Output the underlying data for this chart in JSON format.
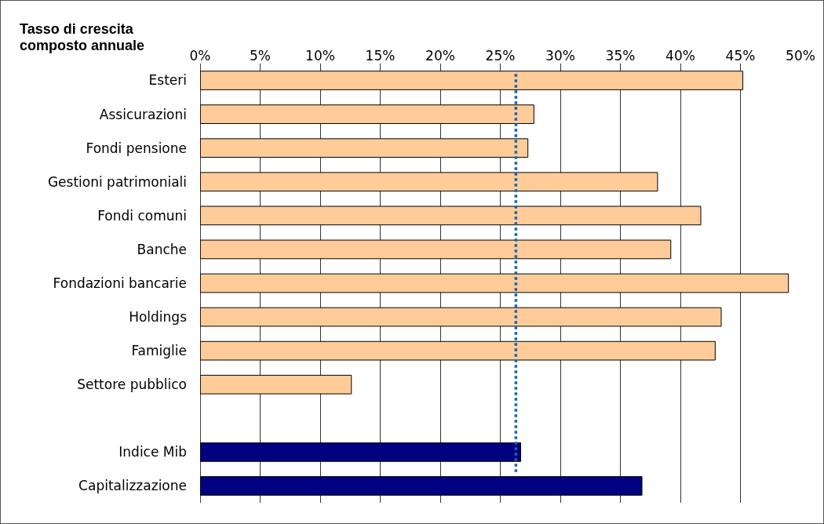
{
  "chart_data": {
    "type": "bar",
    "orientation": "horizontal",
    "title": "Tasso di crescita composto annuale",
    "categories": [
      "Esteri",
      "Assicurazioni",
      "Fondi pensione",
      "Gestioni patrimoniali",
      "Fondi comuni",
      "Banche",
      "Fondazioni bancarie",
      "Holdings",
      "Famiglie",
      "Settore pubblico",
      null,
      "Indice Mib",
      "Capitalizzazione"
    ],
    "values": [
      45.2,
      27.8,
      27.3,
      38.1,
      41.7,
      39.2,
      49.0,
      43.4,
      42.9,
      12.6,
      null,
      26.7,
      36.8
    ],
    "colors": [
      "#ffcc99",
      "#ffcc99",
      "#ffcc99",
      "#ffcc99",
      "#ffcc99",
      "#ffcc99",
      "#ffcc99",
      "#ffcc99",
      "#ffcc99",
      "#ffcc99",
      "#ffcc99",
      "#000080",
      "#000080"
    ],
    "xlim": [
      0,
      50
    ],
    "xticks": [
      {
        "value": 0,
        "label": "0%"
      },
      {
        "value": 5,
        "label": "5%"
      },
      {
        "value": 10,
        "label": "10%"
      },
      {
        "value": 15,
        "label": "15%"
      },
      {
        "value": 20,
        "label": "20%"
      },
      {
        "value": 25,
        "label": "25%"
      },
      {
        "value": 30,
        "label": "30%"
      },
      {
        "value": 35,
        "label": "35%"
      },
      {
        "value": 40,
        "label": "40%"
      },
      {
        "value": 45,
        "label": "45%"
      },
      {
        "value": 50,
        "label": "50%"
      }
    ],
    "grid": "x",
    "ref_lines": [
      {
        "axis": "x",
        "value": 26.3,
        "color": "#1565a8",
        "line_style": "dotted"
      }
    ]
  }
}
